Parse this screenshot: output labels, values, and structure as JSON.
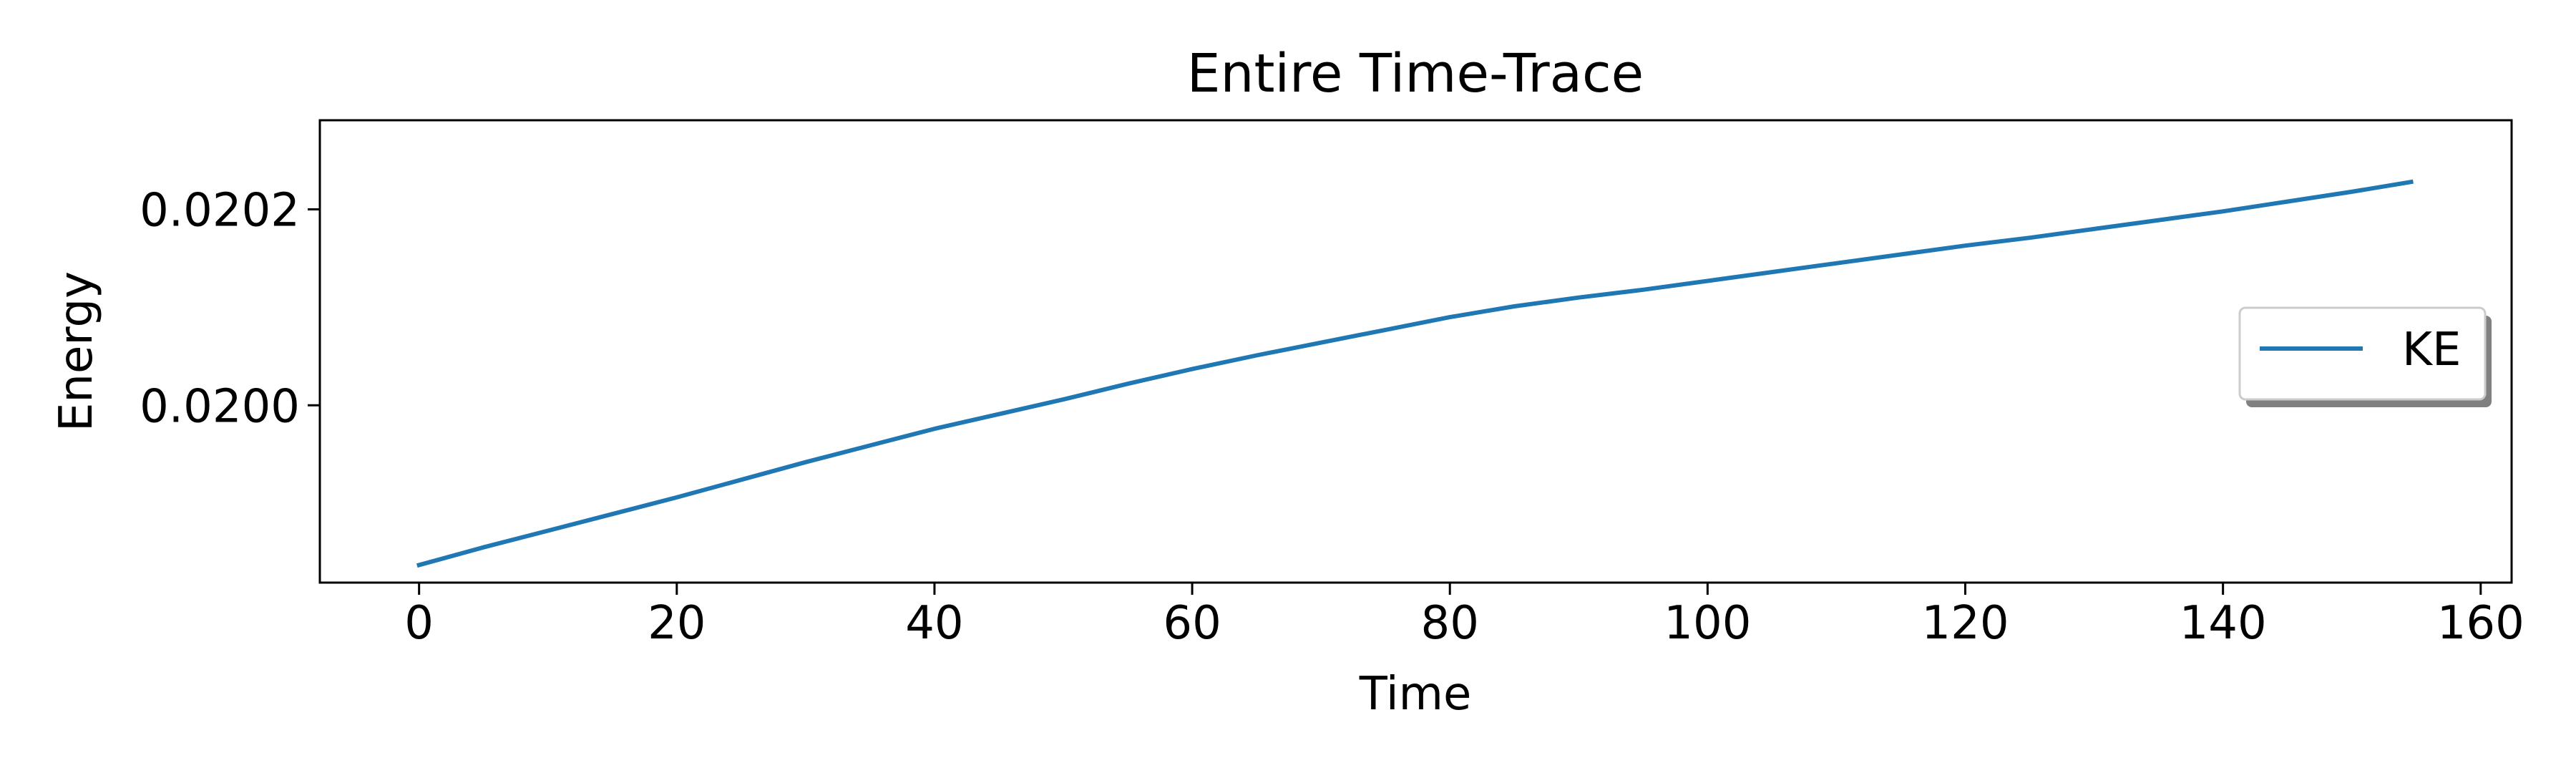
{
  "chart_data": {
    "type": "line",
    "title": "Entire Time-Trace",
    "xlabel": "Time",
    "ylabel": "Energy",
    "xlim": [
      -7.7,
      162.4
    ],
    "ylim": [
      0.019819,
      0.020291
    ],
    "xticks": [
      0,
      20,
      40,
      60,
      80,
      100,
      120,
      140,
      160
    ],
    "xtick_labels": [
      "0",
      "20",
      "40",
      "60",
      "80",
      "100",
      "120",
      "140",
      "160"
    ],
    "yticks": [
      0.02,
      0.0202
    ],
    "ytick_labels": [
      "0.0200",
      "0.0202"
    ],
    "grid": false,
    "legend_position": "center-right",
    "series": [
      {
        "name": "KE",
        "color": "#1f77b4",
        "x": [
          0,
          5,
          10,
          15,
          20,
          25,
          30,
          35,
          40,
          45,
          50,
          55,
          60,
          65,
          70,
          75,
          80,
          85,
          90,
          95,
          100,
          105,
          110,
          115,
          120,
          125,
          130,
          135,
          140,
          145,
          150,
          154.6
        ],
        "y": [
          0.019837,
          0.019855,
          0.019872,
          0.019889,
          0.019906,
          0.019924,
          0.019942,
          0.019959,
          0.019976,
          0.019991,
          0.020006,
          0.020022,
          0.020037,
          0.020051,
          0.020064,
          0.020077,
          0.02009,
          0.020101,
          0.02011,
          0.020118,
          0.020127,
          0.020136,
          0.020145,
          0.020154,
          0.020163,
          0.020171,
          0.02018,
          0.020189,
          0.020198,
          0.020208,
          0.020218,
          0.020228
        ]
      }
    ]
  }
}
